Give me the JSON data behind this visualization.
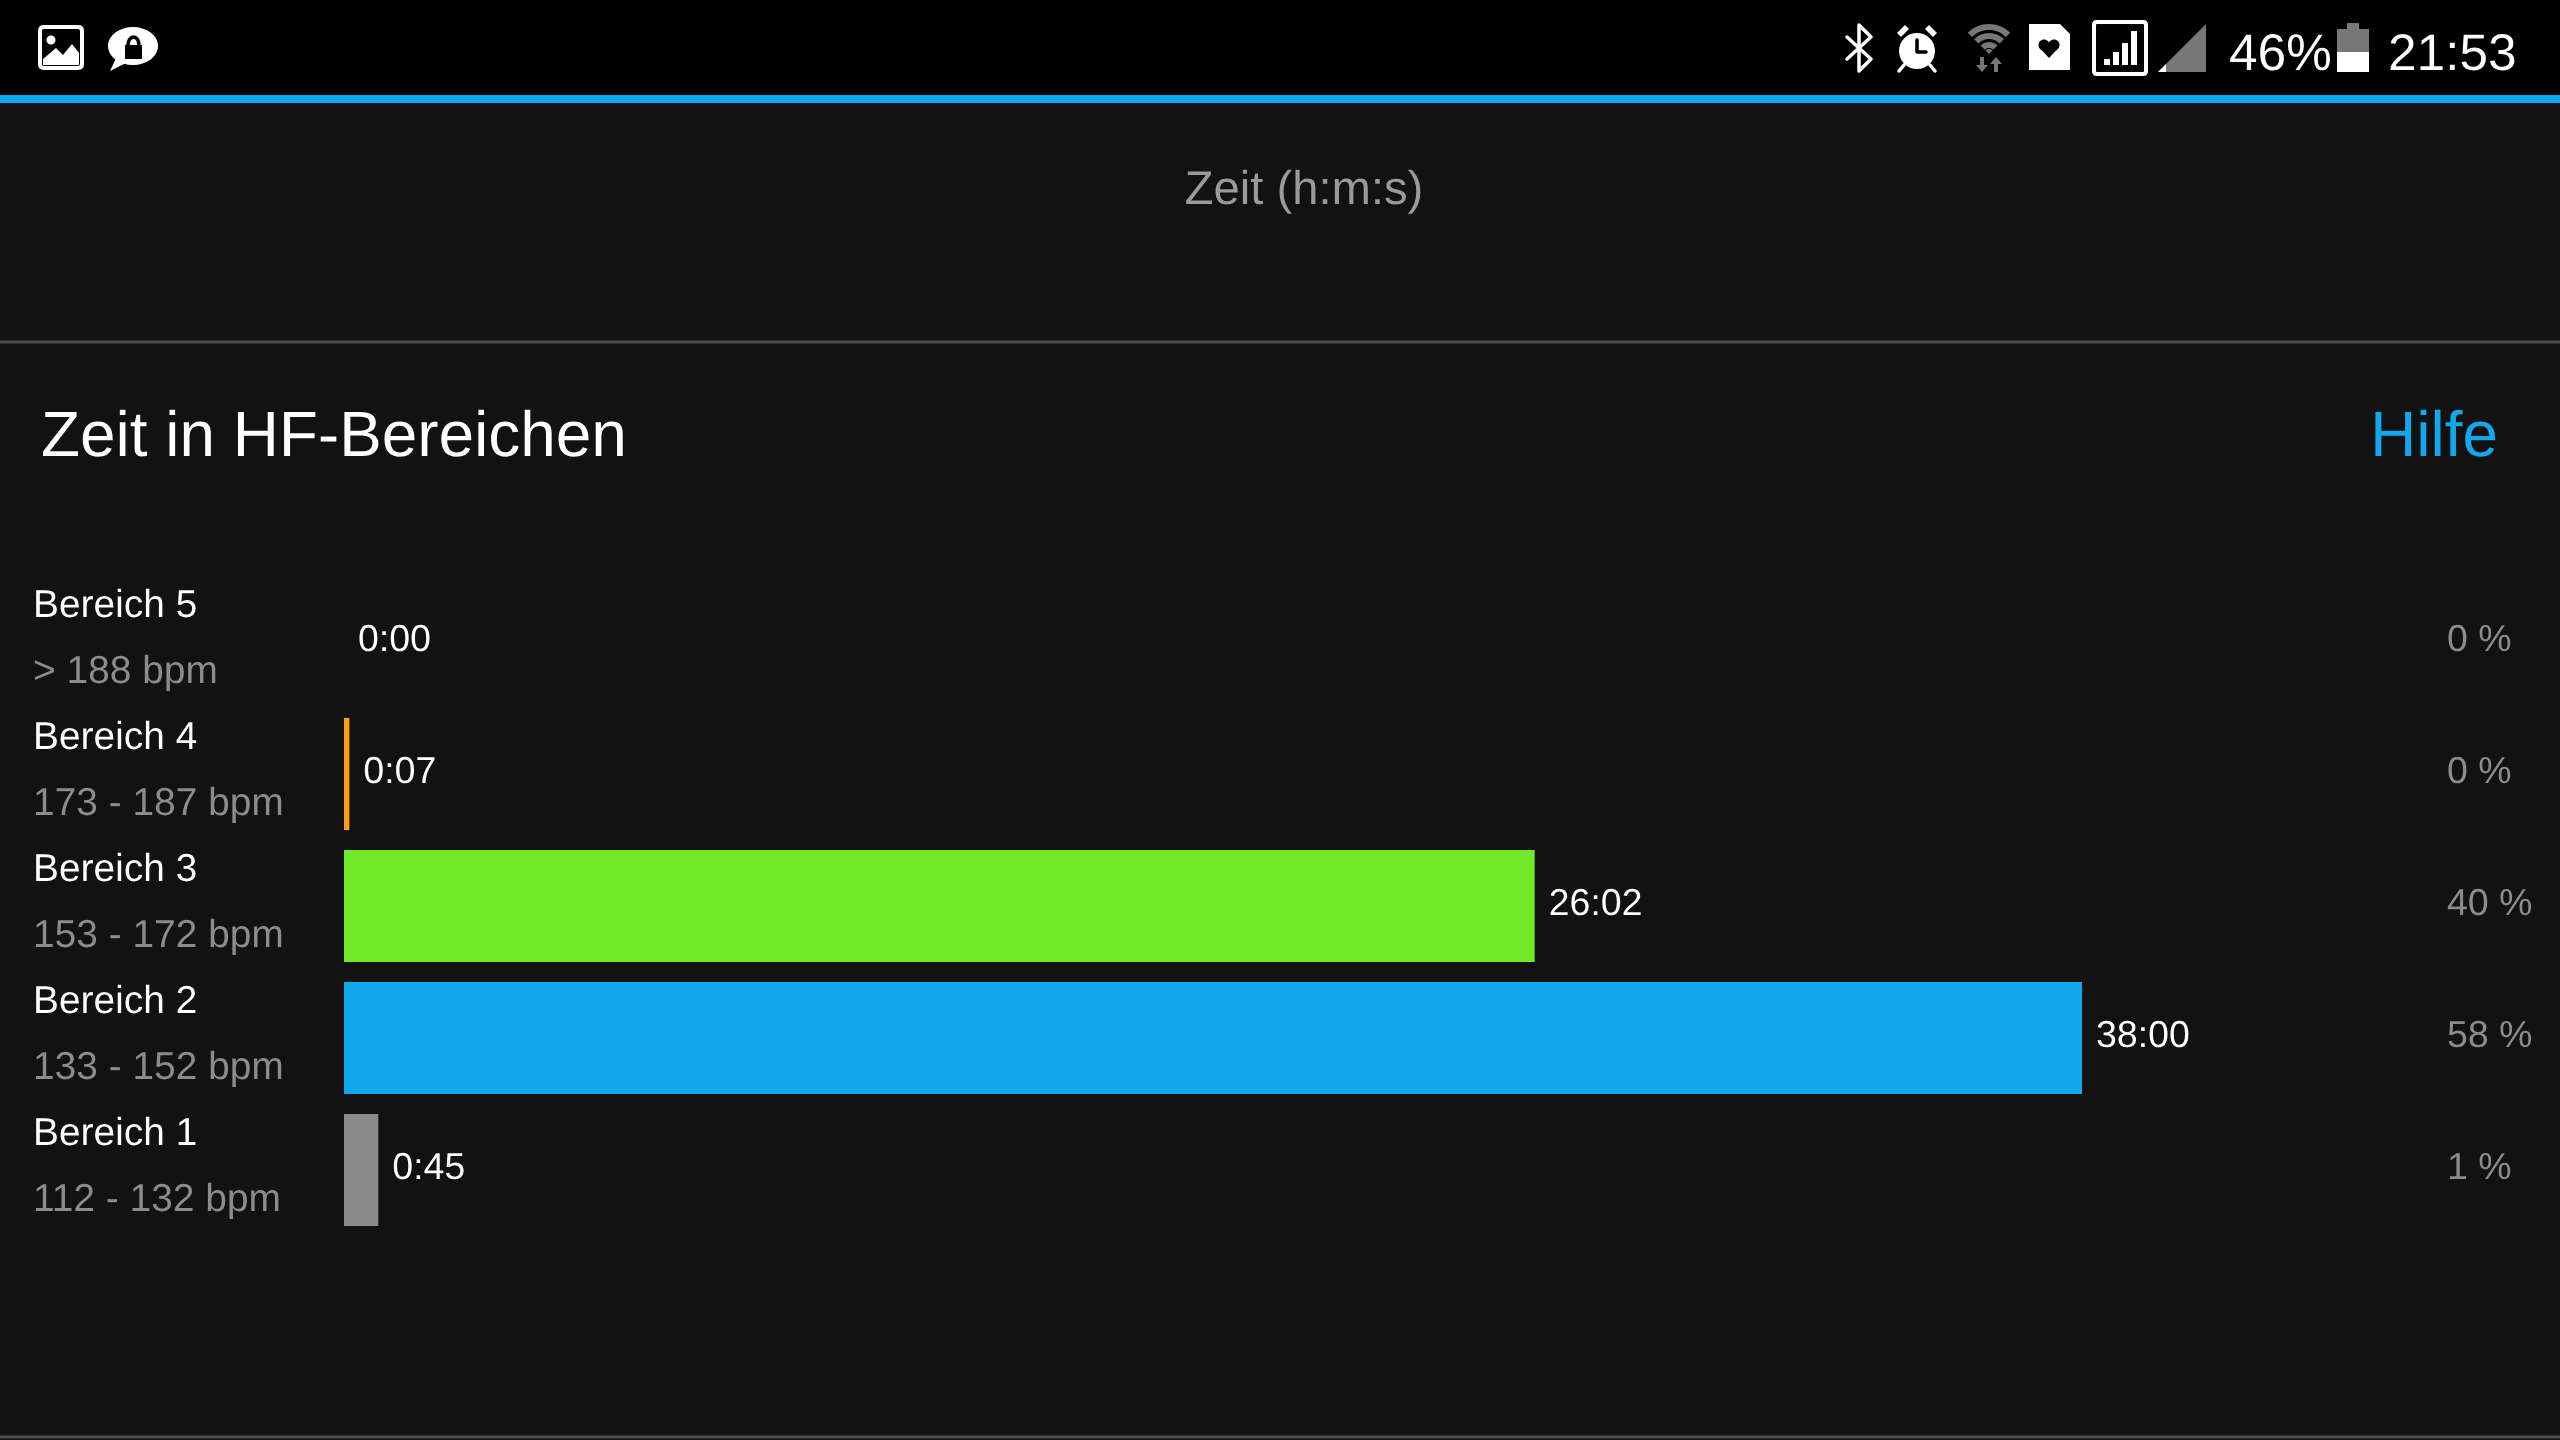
{
  "chart_data": {
    "type": "bar",
    "orientation": "horizontal",
    "title": "Zeit in HF-Bereichen",
    "categories": [
      "Bereich 5\n> 188 bpm",
      "Bereich 4\n173 - 187 bpm",
      "Bereich 3\n153 - 172 bpm",
      "Bereich 2\n133 - 152 bpm",
      "Bereich 1\n112 - 132 bpm"
    ],
    "values": [
      0,
      0.117,
      26.033,
      38,
      0.75
    ],
    "colors": [
      null,
      "#f9a01b",
      "#72e927",
      "#12a8ec",
      "#8a8a8a"
    ],
    "value_labels": [
      "0:00",
      "0:07",
      "26:02",
      "38:00",
      "0:45"
    ],
    "tick_labels": "y",
    "annotations": [
      "Zeit (h:m:s)",
      "Hilfe",
      "46%",
      "21:53",
      "0 %",
      "0 %",
      "40 %",
      "58 %",
      "1 %"
    ]
  }
}
